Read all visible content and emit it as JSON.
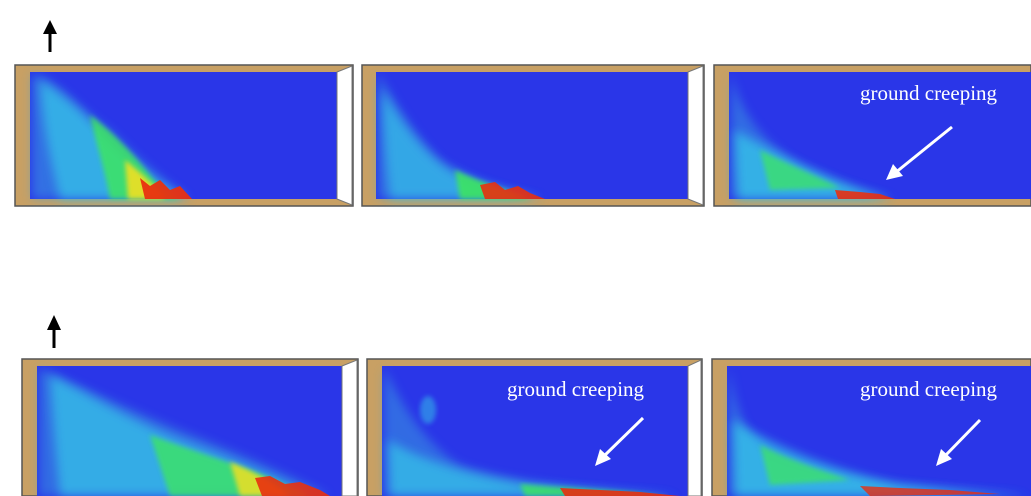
{
  "annotation_label": "ground creeping",
  "colors": {
    "background": "#ffffff",
    "domain_fill": "#2a36e8",
    "wall": "#c8a064",
    "frame_stroke": "#555555",
    "arrow": "#000000",
    "annotation": "#ffffff",
    "plume_cyan": "#35c8e8",
    "plume_green": "#3ee85a",
    "plume_yellow": "#f0e020",
    "plume_red": "#e83010"
  },
  "rows": [
    {
      "panels": [
        {
          "annotation": ""
        },
        {
          "annotation": ""
        },
        {
          "annotation": "ground creeping"
        }
      ]
    },
    {
      "panels": [
        {
          "annotation": ""
        },
        {
          "annotation": "ground creeping"
        },
        {
          "annotation": "ground creeping"
        }
      ]
    }
  ]
}
